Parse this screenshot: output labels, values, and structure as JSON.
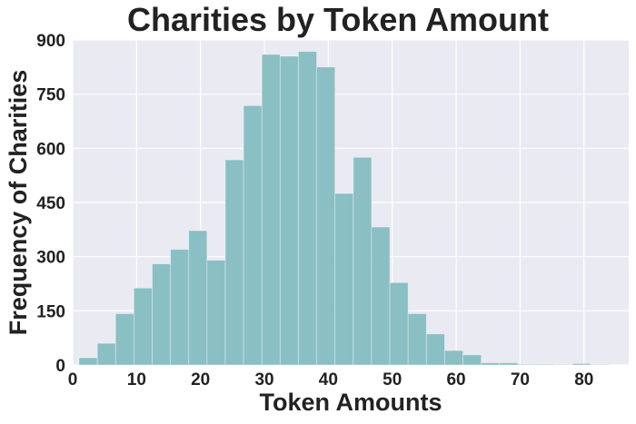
{
  "chart_data": {
    "type": "bar",
    "title": "Charities by Token Amount",
    "xlabel": "Token Amounts",
    "ylabel": "Frequency of Charities",
    "xlim": [
      0,
      87
    ],
    "ylim": [
      0,
      900
    ],
    "x_ticks": [
      "0",
      "10",
      "20",
      "30",
      "40",
      "50",
      "60",
      "70",
      "80"
    ],
    "y_ticks": [
      "0",
      "150",
      "300",
      "450",
      "600",
      "750",
      "900"
    ],
    "grid": true,
    "bin_width": 2.86,
    "bins": [
      {
        "start": 1.0,
        "value": 20
      },
      {
        "start": 3.86,
        "value": 60
      },
      {
        "start": 6.72,
        "value": 142
      },
      {
        "start": 9.58,
        "value": 213
      },
      {
        "start": 12.44,
        "value": 280
      },
      {
        "start": 15.3,
        "value": 320
      },
      {
        "start": 18.16,
        "value": 372
      },
      {
        "start": 21.02,
        "value": 290
      },
      {
        "start": 23.88,
        "value": 568
      },
      {
        "start": 26.74,
        "value": 718
      },
      {
        "start": 29.6,
        "value": 860
      },
      {
        "start": 32.46,
        "value": 855
      },
      {
        "start": 35.32,
        "value": 868
      },
      {
        "start": 38.18,
        "value": 825
      },
      {
        "start": 41.04,
        "value": 475
      },
      {
        "start": 43.9,
        "value": 575
      },
      {
        "start": 46.76,
        "value": 382
      },
      {
        "start": 49.62,
        "value": 228
      },
      {
        "start": 52.48,
        "value": 142
      },
      {
        "start": 55.34,
        "value": 86
      },
      {
        "start": 58.2,
        "value": 40
      },
      {
        "start": 61.06,
        "value": 28
      },
      {
        "start": 63.92,
        "value": 6
      },
      {
        "start": 66.78,
        "value": 6
      },
      {
        "start": 69.64,
        "value": 2
      },
      {
        "start": 72.5,
        "value": 2
      },
      {
        "start": 75.36,
        "value": 1
      },
      {
        "start": 78.22,
        "value": 4
      },
      {
        "start": 81.08,
        "value": 1
      }
    ],
    "colors": {
      "bar": "#8abfc4",
      "plot_background": "#eaeaf2",
      "grid": "#ffffff"
    }
  }
}
